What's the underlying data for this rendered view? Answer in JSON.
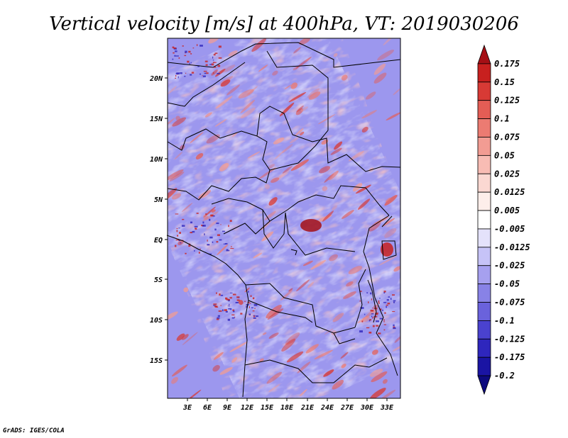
{
  "title": "Vertical velocity [m/s] at 400hPa, VT: 2019030206",
  "credit": "GrADS: IGES/COLA",
  "map": {
    "lon_labels": [
      "3E",
      "6E",
      "9E",
      "12E",
      "15E",
      "18E",
      "21E",
      "24E",
      "27E",
      "30E",
      "33E"
    ],
    "lat_labels": [
      "20N",
      "15N",
      "10N",
      "5N",
      "EQ",
      "5S",
      "10S",
      "15S"
    ]
  },
  "colorbar": {
    "labels": [
      "0.175",
      "0.15",
      "0.125",
      "0.1",
      "0.075",
      "0.05",
      "0.025",
      "0.0125",
      "0.005",
      "-0.005",
      "-0.0125",
      "-0.025",
      "-0.05",
      "-0.075",
      "-0.1",
      "-0.125",
      "-0.175",
      "-0.2"
    ],
    "colors": [
      "#a50f15",
      "#c8201f",
      "#d83a35",
      "#e45d55",
      "#ec7b72",
      "#f29c93",
      "#f8bcb4",
      "#fbd8d2",
      "#fdeeea",
      "#ffffff",
      "#e4e2fb",
      "#c6c3f7",
      "#a6a0ef",
      "#8882e6",
      "#6a62dc",
      "#4a42cf",
      "#2e26bd",
      "#1a14a3",
      "#0d0a7e"
    ]
  }
}
